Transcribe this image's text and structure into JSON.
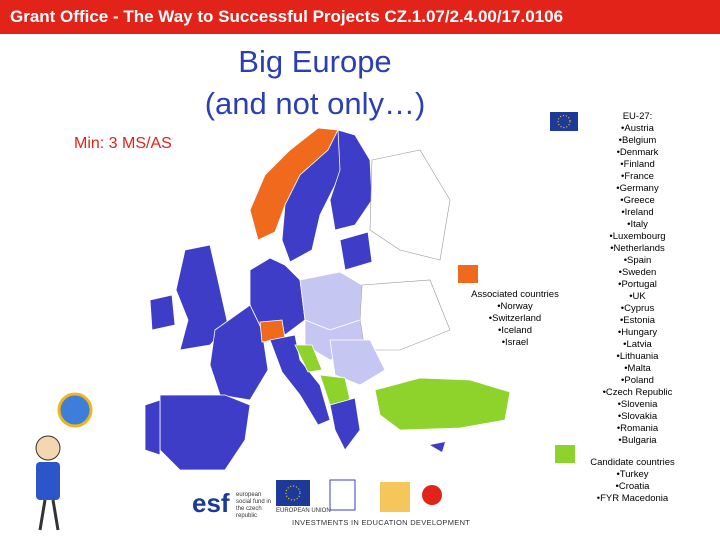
{
  "header": {
    "title": "Grant Office - The Way to Successful Projects CZ.1.07/2.4.00/17.0106"
  },
  "slide": {
    "title_lines": [
      "Big Europe",
      "(and not only…)"
    ],
    "subtitle": "Min: 3 MS/AS"
  },
  "legend": {
    "eu": {
      "heading": "EU-27:",
      "items": [
        "•Austria",
        "•Belgium",
        "•Denmark",
        "•Finland",
        "•France",
        "•Germany",
        "•Greece",
        "•Ireland",
        "•Italy",
        "•Luxembourg",
        "•Netherlands",
        "•Spain",
        "•Sweden",
        "•Portugal",
        "•UK",
        "•Cyprus",
        "•Estonia",
        "•Hungary",
        "•Latvia",
        "•Lithuania",
        "•Malta",
        "•Poland",
        "•Czech Republic",
        "•Slovenia",
        "•Slovakia",
        "•Romania",
        "•Bulgaria"
      ]
    },
    "associated": {
      "heading": "Associated countries",
      "items": [
        "•Norway",
        "•Switzerland",
        "•Iceland",
        "•Israel"
      ]
    },
    "candidate": {
      "heading": "Candidate countries",
      "items": [
        "•Turkey",
        "•Croatia",
        "•FYR Macedonia"
      ]
    }
  },
  "footer": {
    "logo_esf": "esf",
    "logo_esf_text": "european social fund in the czech republic",
    "logo_eu_text": "EUROPEAN UNION",
    "caption": "INVESTMENTS IN EDUCATION DEVELOPMENT"
  }
}
